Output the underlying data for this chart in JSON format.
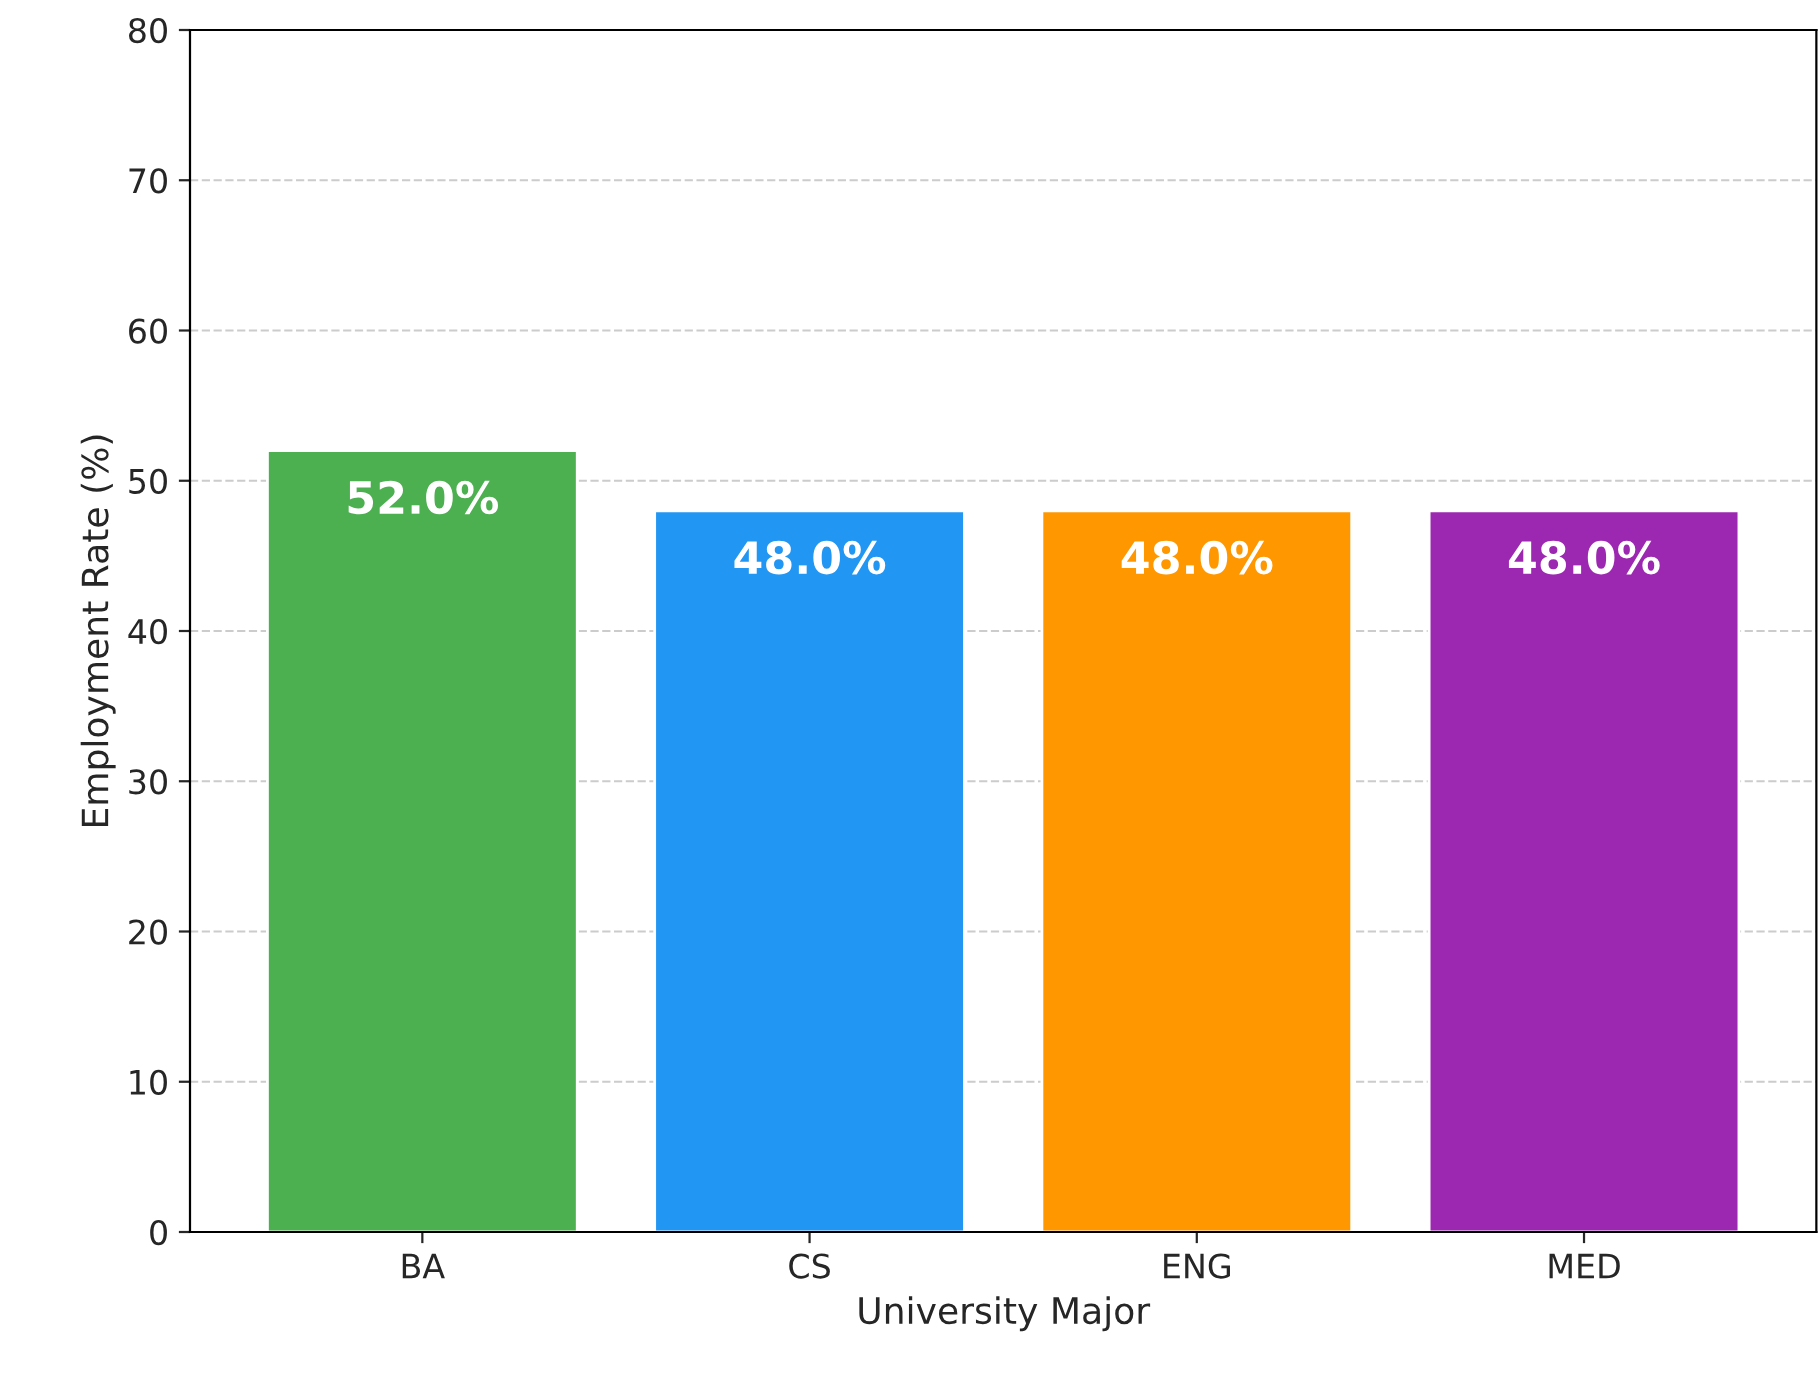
{
  "chart_data": {
    "type": "bar",
    "categories": [
      "BA",
      "CS",
      "ENG",
      "MED"
    ],
    "values": [
      52.0,
      48.0,
      48.0,
      48.0
    ],
    "colors": [
      "#4caf50",
      "#2196f3",
      "#ff9800",
      "#9c27b0"
    ],
    "value_labels": [
      "52.0%",
      "48.0%",
      "48.0%",
      "48.0%"
    ],
    "xlabel": "University Major",
    "ylabel": "Employment Rate (%)",
    "ylim": [
      0,
      80
    ],
    "yticks": [
      0,
      10,
      20,
      30,
      40,
      50,
      60,
      70,
      80
    ],
    "grid": "y",
    "legend": false
  }
}
